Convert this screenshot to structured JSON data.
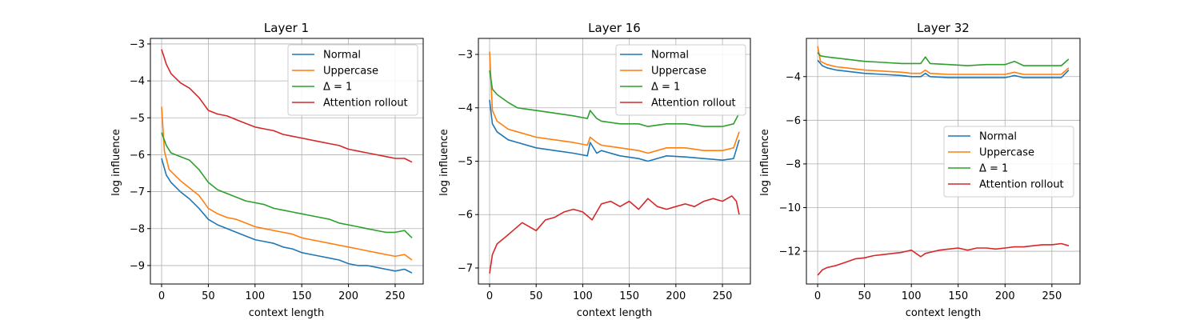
{
  "colors": {
    "Normal": "#1f77b4",
    "Uppercase": "#ff7f0e",
    "Δ = 1": "#2ca02c",
    "Attention rollout": "#d62728"
  },
  "chart_data": [
    {
      "type": "line",
      "title": "Layer 1",
      "xlabel": "context length",
      "ylabel": "log influence",
      "xlim": [
        -12,
        280
      ],
      "ylim": [
        -9.5,
        -2.85
      ],
      "xticks": [
        0,
        50,
        100,
        150,
        200,
        250
      ],
      "yticks": [
        -9,
        -8,
        -7,
        -6,
        -5,
        -4,
        -3
      ],
      "grid": true,
      "legend": "upper right",
      "series": [
        {
          "name": "Normal",
          "x": [
            0,
            5,
            10,
            20,
            30,
            40,
            50,
            60,
            70,
            80,
            90,
            100,
            110,
            120,
            130,
            140,
            150,
            160,
            170,
            180,
            190,
            200,
            210,
            220,
            230,
            240,
            250,
            260,
            268
          ],
          "y": [
            -6.1,
            -6.55,
            -6.75,
            -7.0,
            -7.2,
            -7.45,
            -7.75,
            -7.9,
            -8.0,
            -8.1,
            -8.2,
            -8.3,
            -8.35,
            -8.4,
            -8.5,
            -8.55,
            -8.65,
            -8.7,
            -8.75,
            -8.8,
            -8.85,
            -8.95,
            -9.0,
            -9.0,
            -9.05,
            -9.1,
            -9.15,
            -9.1,
            -9.2
          ]
        },
        {
          "name": "Uppercase",
          "x": [
            0,
            3,
            8,
            20,
            30,
            40,
            50,
            60,
            70,
            80,
            90,
            100,
            110,
            120,
            130,
            140,
            150,
            160,
            170,
            180,
            190,
            200,
            210,
            220,
            230,
            240,
            250,
            260,
            268
          ],
          "y": [
            -4.7,
            -5.9,
            -6.4,
            -6.7,
            -6.9,
            -7.1,
            -7.45,
            -7.6,
            -7.7,
            -7.75,
            -7.85,
            -7.95,
            -8.0,
            -8.05,
            -8.1,
            -8.15,
            -8.25,
            -8.3,
            -8.35,
            -8.4,
            -8.45,
            -8.5,
            -8.55,
            -8.6,
            -8.65,
            -8.7,
            -8.75,
            -8.7,
            -8.85
          ]
        },
        {
          "name": "Δ = 1",
          "x": [
            0,
            5,
            10,
            20,
            30,
            40,
            50,
            60,
            70,
            80,
            90,
            100,
            110,
            120,
            130,
            140,
            150,
            160,
            170,
            180,
            190,
            200,
            210,
            220,
            230,
            240,
            250,
            260,
            268
          ],
          "y": [
            -5.4,
            -5.75,
            -5.95,
            -6.05,
            -6.15,
            -6.4,
            -6.75,
            -6.95,
            -7.05,
            -7.15,
            -7.25,
            -7.3,
            -7.35,
            -7.45,
            -7.5,
            -7.55,
            -7.6,
            -7.65,
            -7.7,
            -7.75,
            -7.85,
            -7.9,
            -7.95,
            -8.0,
            -8.05,
            -8.1,
            -8.1,
            -8.05,
            -8.25
          ]
        },
        {
          "name": "Attention rollout",
          "x": [
            0,
            5,
            10,
            20,
            30,
            40,
            50,
            60,
            70,
            80,
            90,
            100,
            110,
            120,
            130,
            140,
            150,
            160,
            170,
            180,
            190,
            200,
            210,
            220,
            230,
            240,
            250,
            260,
            268
          ],
          "y": [
            -3.15,
            -3.55,
            -3.8,
            -4.05,
            -4.2,
            -4.45,
            -4.8,
            -4.9,
            -4.95,
            -5.05,
            -5.15,
            -5.25,
            -5.3,
            -5.35,
            -5.45,
            -5.5,
            -5.55,
            -5.6,
            -5.65,
            -5.7,
            -5.75,
            -5.85,
            -5.9,
            -5.95,
            -6.0,
            -6.05,
            -6.1,
            -6.1,
            -6.2
          ]
        }
      ]
    },
    {
      "type": "line",
      "title": "Layer 16",
      "xlabel": "context length",
      "ylabel": "log influence",
      "xlim": [
        -12,
        280
      ],
      "ylim": [
        -7.3,
        -2.7
      ],
      "xticks": [
        0,
        50,
        100,
        150,
        200,
        250
      ],
      "yticks": [
        -7,
        -6,
        -5,
        -4,
        -3
      ],
      "grid": true,
      "legend": "upper right",
      "series": [
        {
          "name": "Normal",
          "x": [
            0,
            3,
            8,
            20,
            30,
            50,
            70,
            90,
            105,
            108,
            115,
            120,
            140,
            160,
            170,
            190,
            210,
            230,
            250,
            262,
            268
          ],
          "y": [
            -3.85,
            -4.3,
            -4.45,
            -4.6,
            -4.65,
            -4.75,
            -4.8,
            -4.85,
            -4.9,
            -4.65,
            -4.85,
            -4.8,
            -4.9,
            -4.95,
            -5.0,
            -4.9,
            -4.92,
            -4.95,
            -4.98,
            -4.95,
            -4.6
          ]
        },
        {
          "name": "Uppercase",
          "x": [
            0,
            3,
            8,
            20,
            30,
            50,
            70,
            90,
            105,
            108,
            115,
            120,
            140,
            160,
            170,
            190,
            210,
            230,
            250,
            262,
            268
          ],
          "y": [
            -2.95,
            -4.05,
            -4.25,
            -4.4,
            -4.45,
            -4.55,
            -4.6,
            -4.65,
            -4.7,
            -4.55,
            -4.65,
            -4.7,
            -4.75,
            -4.8,
            -4.85,
            -4.75,
            -4.75,
            -4.8,
            -4.8,
            -4.75,
            -4.45
          ]
        },
        {
          "name": "Δ = 1",
          "x": [
            0,
            3,
            8,
            20,
            30,
            50,
            70,
            90,
            105,
            108,
            115,
            120,
            140,
            160,
            170,
            190,
            210,
            230,
            250,
            262,
            268
          ],
          "y": [
            -3.3,
            -3.65,
            -3.75,
            -3.9,
            -4.0,
            -4.05,
            -4.1,
            -4.15,
            -4.2,
            -4.05,
            -4.2,
            -4.25,
            -4.3,
            -4.3,
            -4.35,
            -4.3,
            -4.3,
            -4.35,
            -4.35,
            -4.3,
            -4.1
          ]
        },
        {
          "name": "Attention rollout",
          "x": [
            0,
            3,
            8,
            15,
            25,
            35,
            50,
            60,
            70,
            80,
            90,
            100,
            110,
            115,
            120,
            130,
            140,
            150,
            160,
            170,
            180,
            190,
            200,
            210,
            220,
            230,
            240,
            250,
            260,
            265,
            268
          ],
          "y": [
            -7.1,
            -6.75,
            -6.55,
            -6.45,
            -6.3,
            -6.15,
            -6.3,
            -6.1,
            -6.05,
            -5.95,
            -5.9,
            -5.95,
            -6.1,
            -5.95,
            -5.8,
            -5.75,
            -5.85,
            -5.75,
            -5.9,
            -5.7,
            -5.85,
            -5.9,
            -5.85,
            -5.8,
            -5.85,
            -5.75,
            -5.7,
            -5.75,
            -5.65,
            -5.75,
            -6.0
          ]
        }
      ]
    },
    {
      "type": "line",
      "title": "Layer 32",
      "xlabel": "context length",
      "ylabel": "log influence",
      "xlim": [
        -12,
        280
      ],
      "ylim": [
        -13.5,
        -2.25
      ],
      "xticks": [
        0,
        50,
        100,
        150,
        200,
        250
      ],
      "yticks": [
        -12,
        -10,
        -8,
        -6,
        -4
      ],
      "grid": true,
      "legend": "center right",
      "series": [
        {
          "name": "Normal",
          "x": [
            0,
            5,
            10,
            20,
            30,
            50,
            70,
            90,
            100,
            110,
            115,
            120,
            140,
            160,
            180,
            200,
            210,
            220,
            240,
            260,
            268
          ],
          "y": [
            -3.25,
            -3.5,
            -3.6,
            -3.7,
            -3.75,
            -3.85,
            -3.9,
            -3.95,
            -4.0,
            -4.0,
            -3.85,
            -4.0,
            -4.05,
            -4.05,
            -4.05,
            -4.05,
            -3.95,
            -4.05,
            -4.05,
            -4.05,
            -3.7
          ]
        },
        {
          "name": "Uppercase",
          "x": [
            0,
            3,
            10,
            20,
            30,
            50,
            70,
            90,
            100,
            110,
            115,
            120,
            140,
            160,
            180,
            200,
            210,
            220,
            240,
            260,
            268
          ],
          "y": [
            -2.6,
            -3.3,
            -3.45,
            -3.55,
            -3.6,
            -3.7,
            -3.75,
            -3.8,
            -3.85,
            -3.85,
            -3.7,
            -3.85,
            -3.9,
            -3.9,
            -3.9,
            -3.9,
            -3.8,
            -3.9,
            -3.9,
            -3.9,
            -3.6
          ]
        },
        {
          "name": "Δ = 1",
          "x": [
            0,
            3,
            10,
            20,
            30,
            50,
            70,
            90,
            100,
            110,
            115,
            120,
            140,
            160,
            180,
            200,
            210,
            220,
            240,
            260,
            268
          ],
          "y": [
            -2.9,
            -3.05,
            -3.1,
            -3.15,
            -3.2,
            -3.3,
            -3.35,
            -3.4,
            -3.4,
            -3.4,
            -3.1,
            -3.4,
            -3.45,
            -3.5,
            -3.45,
            -3.45,
            -3.3,
            -3.5,
            -3.5,
            -3.5,
            -3.2
          ]
        },
        {
          "name": "Attention rollout",
          "x": [
            0,
            5,
            10,
            20,
            30,
            40,
            50,
            60,
            70,
            80,
            90,
            100,
            110,
            115,
            120,
            130,
            140,
            150,
            160,
            170,
            180,
            190,
            200,
            210,
            220,
            230,
            240,
            250,
            260,
            268
          ],
          "y": [
            -13.1,
            -12.85,
            -12.75,
            -12.65,
            -12.5,
            -12.35,
            -12.3,
            -12.2,
            -12.15,
            -12.1,
            -12.05,
            -11.95,
            -12.25,
            -12.1,
            -12.05,
            -11.95,
            -11.9,
            -11.85,
            -11.95,
            -11.85,
            -11.85,
            -11.9,
            -11.85,
            -11.8,
            -11.8,
            -11.75,
            -11.7,
            -11.7,
            -11.65,
            -11.75
          ]
        }
      ]
    }
  ]
}
